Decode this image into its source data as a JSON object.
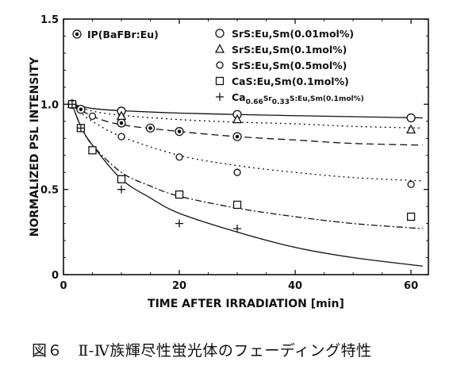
{
  "caption": "図６　Ⅱ-Ⅳ族輝尽性蛍光体のフェーディング特性",
  "chart_data": {
    "type": "scatter",
    "xlabel": "TIME AFTER IRRADIATION [min]",
    "ylabel": "NORMALIZED PSL INTENSITY",
    "xlim": [
      0,
      63
    ],
    "ylim": [
      0,
      1.5
    ],
    "x_ticks": [
      "0",
      "20",
      "40",
      "60"
    ],
    "y_ticks": [
      "0",
      "0.5",
      "1.0",
      "1.5"
    ],
    "legend_position": "top",
    "series": [
      {
        "name": "IP(BaFBr:Eu)",
        "marker": "circle-dot",
        "line": "dashed",
        "points": [
          [
            1.5,
            1.0
          ],
          [
            3,
            0.97
          ],
          [
            10,
            0.89
          ],
          [
            15,
            0.86
          ],
          [
            20,
            0.84
          ],
          [
            30,
            0.81
          ]
        ],
        "fit": [
          [
            1.5,
            1.0
          ],
          [
            5,
            0.93
          ],
          [
            10,
            0.88
          ],
          [
            20,
            0.84
          ],
          [
            30,
            0.81
          ],
          [
            40,
            0.79
          ],
          [
            50,
            0.77
          ],
          [
            62,
            0.76
          ]
        ]
      },
      {
        "name": "SrS:Eu,Sm(0.01mol%)",
        "marker": "circle",
        "line": "solid",
        "points": [
          [
            1.5,
            1.0
          ],
          [
            10,
            0.96
          ],
          [
            30,
            0.94
          ],
          [
            60,
            0.92
          ]
        ],
        "fit": [
          [
            1.5,
            1.0
          ],
          [
            5,
            0.975
          ],
          [
            10,
            0.962
          ],
          [
            20,
            0.948
          ],
          [
            30,
            0.94
          ],
          [
            40,
            0.933
          ],
          [
            50,
            0.927
          ],
          [
            62,
            0.92
          ]
        ]
      },
      {
        "name": "SrS:Eu,Sm(0.1mol%)",
        "marker": "triangle",
        "line": "dotted",
        "points": [
          [
            1.5,
            1.0
          ],
          [
            10,
            0.93
          ],
          [
            30,
            0.91
          ],
          [
            60,
            0.85
          ]
        ],
        "fit": [
          [
            1.5,
            1.0
          ],
          [
            5,
            0.96
          ],
          [
            10,
            0.935
          ],
          [
            20,
            0.91
          ],
          [
            30,
            0.895
          ],
          [
            40,
            0.885
          ],
          [
            50,
            0.87
          ],
          [
            62,
            0.86
          ]
        ]
      },
      {
        "name": "SrS:Eu,Sm(0.5mol%)",
        "marker": "circle-small",
        "line": "dotted",
        "points": [
          [
            1.5,
            1.0
          ],
          [
            5,
            0.93
          ],
          [
            10,
            0.81
          ],
          [
            20,
            0.69
          ],
          [
            30,
            0.6
          ],
          [
            60,
            0.53
          ]
        ],
        "fit": [
          [
            1.5,
            1.0
          ],
          [
            3,
            0.95
          ],
          [
            5,
            0.9
          ],
          [
            10,
            0.81
          ],
          [
            20,
            0.7
          ],
          [
            30,
            0.64
          ],
          [
            40,
            0.6
          ],
          [
            50,
            0.57
          ],
          [
            62,
            0.55
          ]
        ]
      },
      {
        "name": "CaS:Eu,Sm(0.1mol%)",
        "marker": "square",
        "line": "dashdot",
        "points": [
          [
            1.5,
            1.0
          ],
          [
            3,
            0.86
          ],
          [
            5,
            0.73
          ],
          [
            10,
            0.56
          ],
          [
            20,
            0.47
          ],
          [
            30,
            0.41
          ],
          [
            60,
            0.34
          ]
        ],
        "fit": [
          [
            1.5,
            1.0
          ],
          [
            3,
            0.87
          ],
          [
            5,
            0.76
          ],
          [
            10,
            0.6
          ],
          [
            15,
            0.52
          ],
          [
            20,
            0.46
          ],
          [
            30,
            0.39
          ],
          [
            40,
            0.34
          ],
          [
            50,
            0.3
          ],
          [
            62,
            0.27
          ]
        ]
      },
      {
        "name": "Ca0.66Sr0.33S:Eu,Sm(0.1mol%)",
        "name_parts": {
          "pre": "Ca",
          "sub1": "0.66",
          "mid": "Sr",
          "sub2": "0.33",
          "post": "S:Eu,Sm(0.1mol%)"
        },
        "marker": "plus",
        "line": "solid",
        "points": [
          [
            1.5,
            1.0
          ],
          [
            3,
            0.86
          ],
          [
            10,
            0.5
          ],
          [
            20,
            0.3
          ],
          [
            30,
            0.27
          ]
        ],
        "fit": [
          [
            1.5,
            1.0
          ],
          [
            3,
            0.87
          ],
          [
            5,
            0.76
          ],
          [
            10,
            0.56
          ],
          [
            15,
            0.45
          ],
          [
            20,
            0.36
          ],
          [
            30,
            0.25
          ],
          [
            40,
            0.16
          ],
          [
            50,
            0.1
          ],
          [
            62,
            0.05
          ]
        ]
      }
    ]
  }
}
